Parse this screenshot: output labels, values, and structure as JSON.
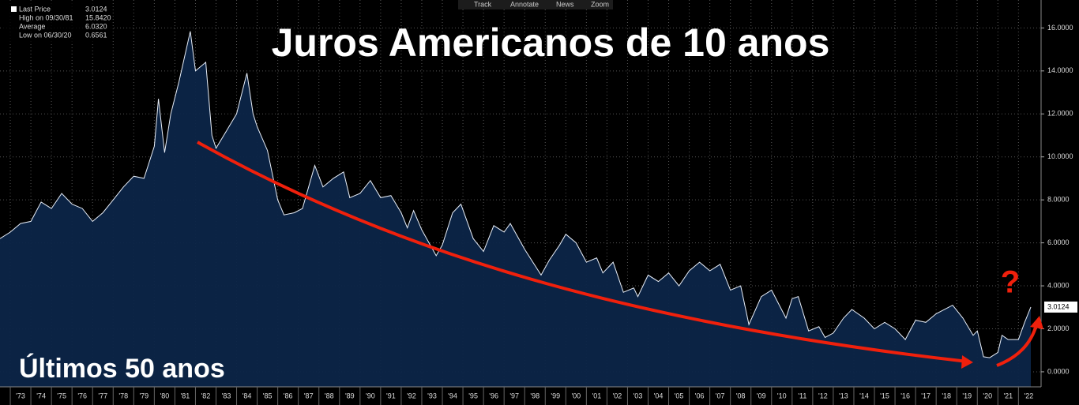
{
  "toolbar": [
    "Track",
    "Annotate",
    "News",
    "Zoom"
  ],
  "chart_data": {
    "type": "area",
    "title": "Juros Americanos de 10 anos",
    "annotation": "Últimos 50 anos",
    "question_mark": "?",
    "legend_stats": [
      {
        "label": "Last Price",
        "value": "3.0124"
      },
      {
        "label": "High on 09/30/81",
        "value": "15.8420"
      },
      {
        "label": "Average",
        "value": "6.0320"
      },
      {
        "label": "Low on 06/30/20",
        "value": "0.6561"
      }
    ],
    "x": [
      1972.5,
      1973,
      1973.5,
      1974,
      1974.5,
      1975,
      1975.5,
      1976,
      1976.5,
      1977,
      1977.5,
      1978,
      1978.5,
      1979,
      1979.5,
      1980,
      1980.2,
      1980.5,
      1980.8,
      1981.2,
      1981.75,
      1982,
      1982.5,
      1982.8,
      1983,
      1983.5,
      1984,
      1984.5,
      1984.8,
      1985,
      1985.5,
      1986,
      1986.3,
      1986.8,
      1987.2,
      1987.8,
      1988.2,
      1988.7,
      1989.2,
      1989.5,
      1990,
      1990.5,
      1991,
      1991.5,
      1992,
      1992.3,
      1992.6,
      1993,
      1993.7,
      1994,
      1994.5,
      1994.9,
      1995.5,
      1996,
      1996.5,
      1997,
      1997.3,
      1998,
      1998.8,
      1999.2,
      1999.7,
      2000,
      2000.5,
      2001,
      2001.5,
      2001.8,
      2002.3,
      2002.8,
      2003.3,
      2003.5,
      2004,
      2004.5,
      2005,
      2005.5,
      2006,
      2006.5,
      2007,
      2007.5,
      2008,
      2008.5,
      2008.9,
      2009.5,
      2010,
      2010.7,
      2011,
      2011.3,
      2011.8,
      2012.3,
      2012.6,
      2013,
      2013.5,
      2013.9,
      2014.5,
      2015,
      2015.5,
      2016,
      2016.5,
      2017,
      2017.5,
      2018,
      2018.8,
      2019.3,
      2019.8,
      2020,
      2020.3,
      2020.6,
      2021,
      2021.2,
      2021.5,
      2022,
      2022.3,
      2022.6
    ],
    "series": [
      {
        "name": "Last Price",
        "color": "#e8eef8",
        "fill": "#0c2548",
        "values": [
          6.2,
          6.5,
          6.9,
          7.0,
          7.9,
          7.6,
          8.3,
          7.8,
          7.6,
          7.0,
          7.4,
          8.0,
          8.6,
          9.1,
          9.0,
          10.5,
          12.7,
          10.2,
          12.0,
          13.5,
          15.842,
          14.0,
          14.4,
          11.0,
          10.4,
          11.2,
          12.0,
          13.9,
          12.0,
          11.4,
          10.3,
          8.0,
          7.3,
          7.4,
          7.6,
          9.6,
          8.6,
          9.0,
          9.3,
          8.1,
          8.3,
          8.9,
          8.1,
          8.2,
          7.4,
          6.7,
          7.5,
          6.6,
          5.4,
          5.9,
          7.4,
          7.8,
          6.2,
          5.6,
          6.8,
          6.5,
          6.9,
          5.7,
          4.5,
          5.2,
          5.9,
          6.4,
          6.0,
          5.1,
          5.3,
          4.6,
          5.1,
          3.7,
          3.9,
          3.5,
          4.5,
          4.2,
          4.6,
          4.0,
          4.7,
          5.1,
          4.7,
          5.0,
          3.8,
          4.0,
          2.2,
          3.5,
          3.8,
          2.5,
          3.4,
          3.5,
          1.9,
          2.1,
          1.6,
          1.8,
          2.5,
          2.9,
          2.5,
          2.0,
          2.3,
          2.0,
          1.5,
          2.4,
          2.3,
          2.7,
          3.1,
          2.5,
          1.7,
          1.9,
          0.7,
          0.6561,
          0.9,
          1.7,
          1.5,
          1.5,
          2.3,
          3.0124
        ]
      }
    ],
    "xlim": [
      1972.5,
      2023.1
    ],
    "ylim": [
      -0.7,
      17.3
    ],
    "xticks": [
      {
        "value": 1973,
        "label": "'73"
      },
      {
        "value": 1974,
        "label": "'74"
      },
      {
        "value": 1975,
        "label": "'75"
      },
      {
        "value": 1976,
        "label": "'76"
      },
      {
        "value": 1977,
        "label": "'77"
      },
      {
        "value": 1978,
        "label": "'78"
      },
      {
        "value": 1979,
        "label": "'79"
      },
      {
        "value": 1980,
        "label": "'80"
      },
      {
        "value": 1981,
        "label": "'81"
      },
      {
        "value": 1982,
        "label": "'82"
      },
      {
        "value": 1983,
        "label": "'83"
      },
      {
        "value": 1984,
        "label": "'84"
      },
      {
        "value": 1985,
        "label": "'85"
      },
      {
        "value": 1986,
        "label": "'86"
      },
      {
        "value": 1987,
        "label": "'87"
      },
      {
        "value": 1988,
        "label": "'88"
      },
      {
        "value": 1989,
        "label": "'89"
      },
      {
        "value": 1990,
        "label": "'90"
      },
      {
        "value": 1991,
        "label": "'91"
      },
      {
        "value": 1992,
        "label": "'92"
      },
      {
        "value": 1993,
        "label": "'93"
      },
      {
        "value": 1994,
        "label": "'94"
      },
      {
        "value": 1995,
        "label": "'95"
      },
      {
        "value": 1996,
        "label": "'96"
      },
      {
        "value": 1997,
        "label": "'97"
      },
      {
        "value": 1998,
        "label": "'98"
      },
      {
        "value": 1999,
        "label": "'99"
      },
      {
        "value": 2000,
        "label": "'00"
      },
      {
        "value": 2001,
        "label": "'01"
      },
      {
        "value": 2002,
        "label": "'02"
      },
      {
        "value": 2003,
        "label": "'03"
      },
      {
        "value": 2004,
        "label": "'04"
      },
      {
        "value": 2005,
        "label": "'05"
      },
      {
        "value": 2006,
        "label": "'06"
      },
      {
        "value": 2007,
        "label": "'07"
      },
      {
        "value": 2008,
        "label": "'08"
      },
      {
        "value": 2009,
        "label": "'09"
      },
      {
        "value": 2010,
        "label": "'10"
      },
      {
        "value": 2011,
        "label": "'11"
      },
      {
        "value": 2012,
        "label": "'12"
      },
      {
        "value": 2013,
        "label": "'13"
      },
      {
        "value": 2014,
        "label": "'14"
      },
      {
        "value": 2015,
        "label": "'15"
      },
      {
        "value": 2016,
        "label": "'16"
      },
      {
        "value": 2017,
        "label": "'17"
      },
      {
        "value": 2018,
        "label": "'18"
      },
      {
        "value": 2019,
        "label": "'19"
      },
      {
        "value": 2020,
        "label": "'20"
      },
      {
        "value": 2021,
        "label": "'21"
      },
      {
        "value": 2022,
        "label": "'22"
      }
    ],
    "yticks": [
      {
        "value": 0,
        "label": "0.0000"
      },
      {
        "value": 2,
        "label": "2.0000"
      },
      {
        "value": 4,
        "label": "4.0000"
      },
      {
        "value": 6,
        "label": "6.0000"
      },
      {
        "value": 8,
        "label": "8.0000"
      },
      {
        "value": 10,
        "label": "10.0000"
      },
      {
        "value": 12,
        "label": "12.0000"
      },
      {
        "value": 14,
        "label": "14.0000"
      },
      {
        "value": 16,
        "label": "16.0000"
      }
    ],
    "grid": true
  }
}
